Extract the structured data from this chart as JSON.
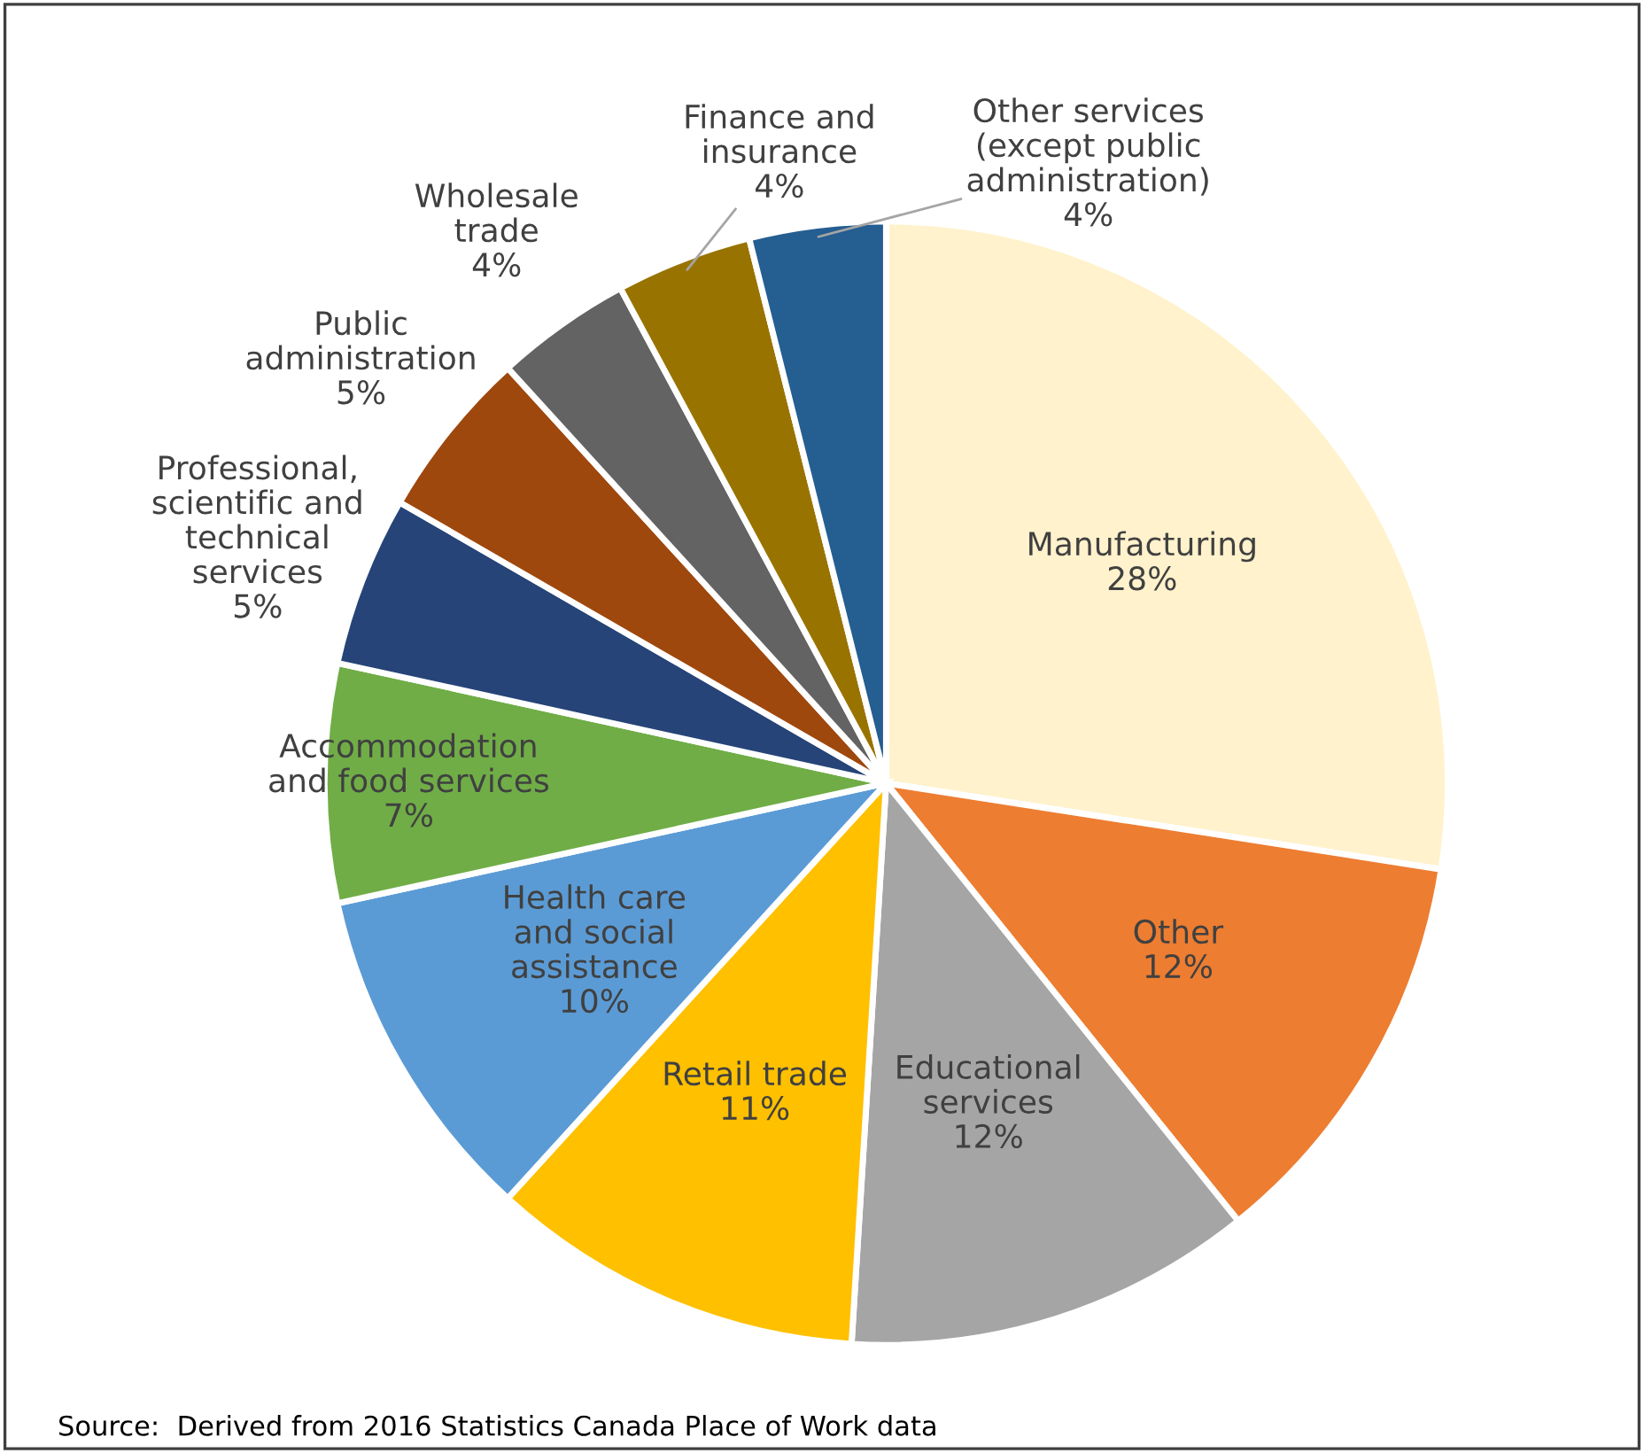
{
  "chart_data": {
    "type": "pie",
    "categories": [
      "Manufacturing",
      "Other",
      "Educational\nservices",
      "Retail trade",
      "Health care\nand social\nassistance",
      "Accommodation\nand food services",
      "Professional,\nscientific and\ntechnical\nservices",
      "Public\nadministration",
      "Wholesale\ntrade",
      "Finance and\ninsurance",
      "Other services\n(except public\nadministration)"
    ],
    "values": [
      28,
      12,
      12,
      11,
      10,
      7,
      5,
      5,
      4,
      4,
      4
    ],
    "value_labels": [
      "28%",
      "12%",
      "12%",
      "11%",
      "10%",
      "7%",
      "5%",
      "5%",
      "4%",
      "4%",
      "4%"
    ],
    "colors": [
      "#fff2cc",
      "#ed7d31",
      "#a5a5a5",
      "#ffc000",
      "#5b9bd5",
      "#70ad47",
      "#264478",
      "#9e480e",
      "#636363",
      "#997300",
      "#255e91"
    ],
    "annotations": [
      "Source:  Derived from 2016 Statistics Canada Place of Work data"
    ]
  }
}
